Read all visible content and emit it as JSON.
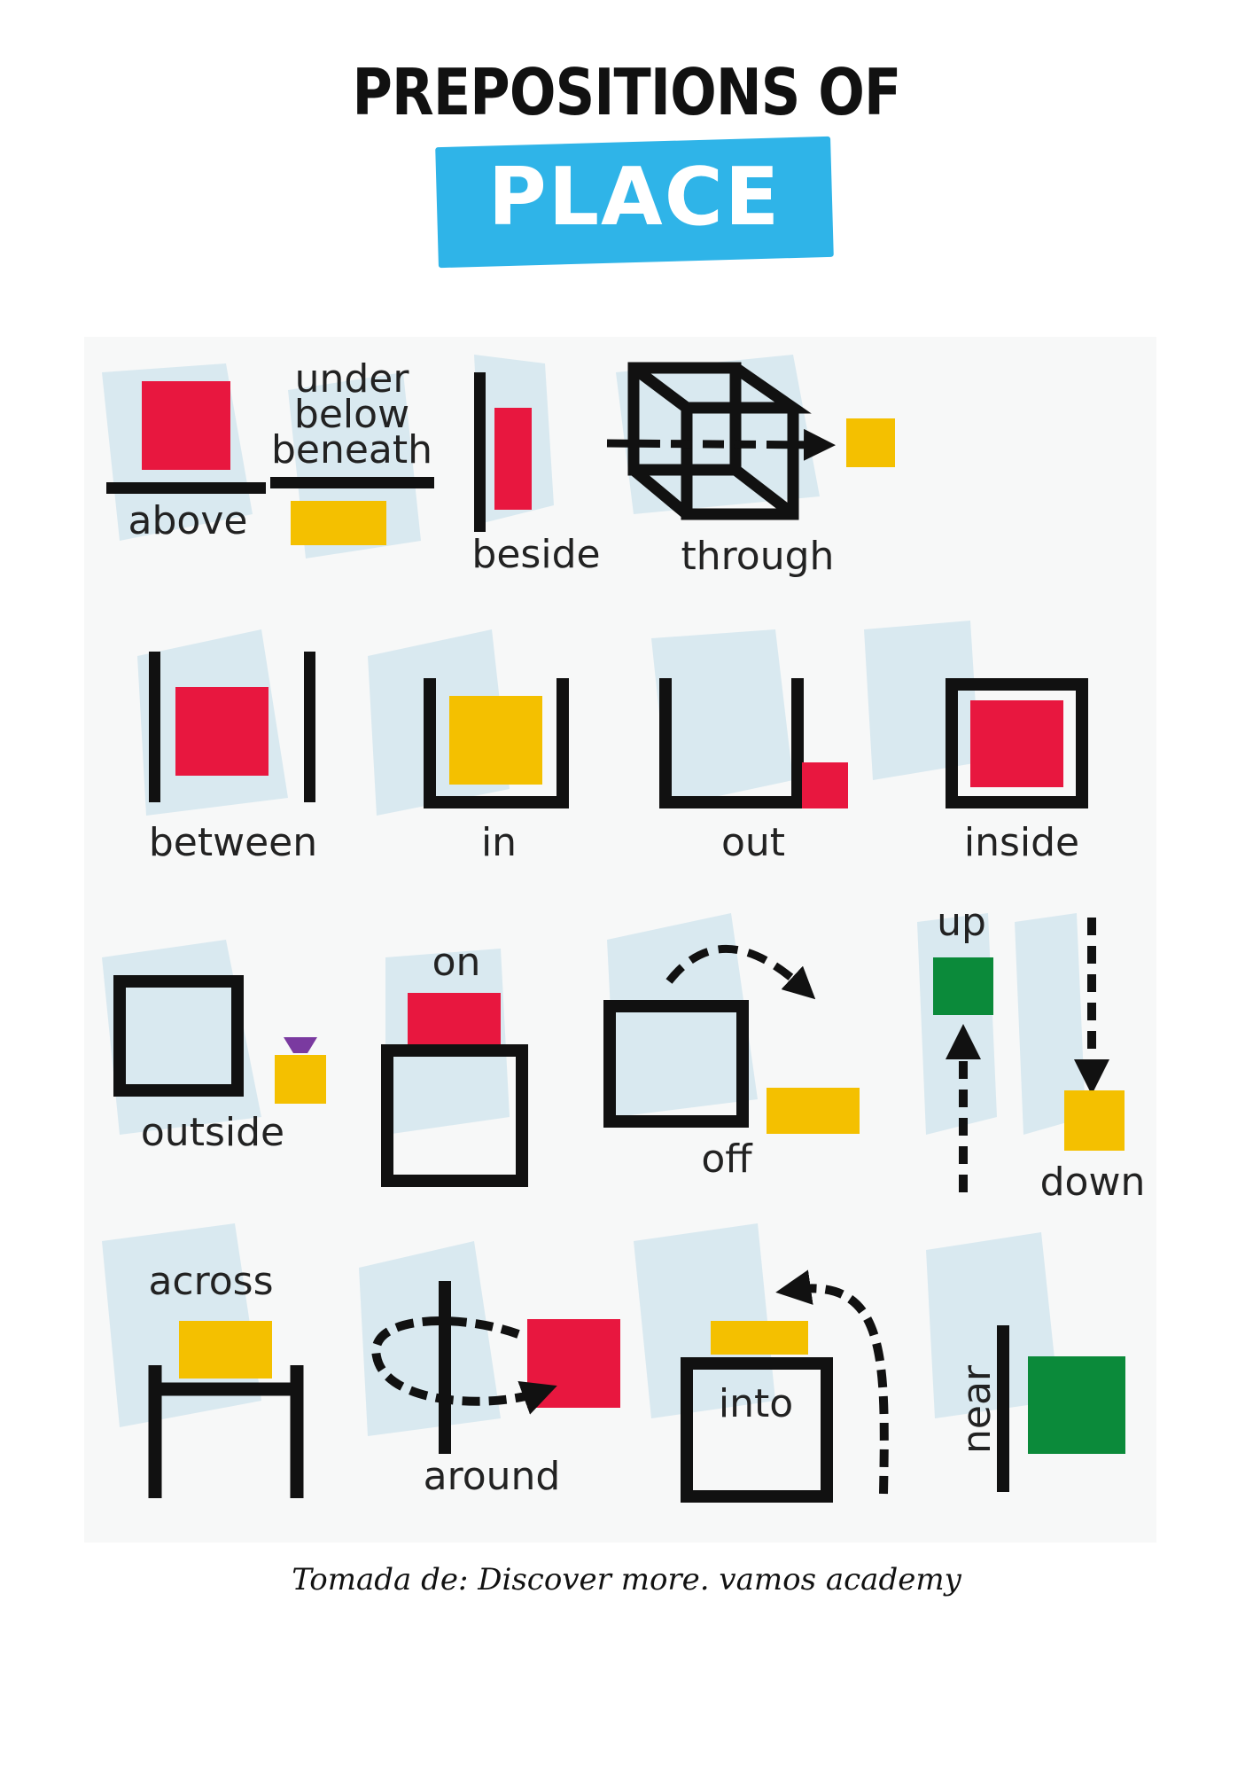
{
  "header": {
    "title": "PREPOSITIONS OF",
    "badge": "PLACE"
  },
  "colors": {
    "red": "#e8173f",
    "yellow": "#f4c000",
    "green": "#0b8a3a",
    "black": "#111111",
    "badge_blue": "#2fb4e8",
    "purple": "#7a3aa0",
    "brush": "#cfe4ee"
  },
  "prepositions": {
    "above": "above",
    "under": "under",
    "below": "below",
    "beneath": "beneath",
    "beside": "beside",
    "through": "through",
    "between": "between",
    "in": "in",
    "out": "out",
    "inside": "inside",
    "outside": "outside",
    "on": "on",
    "off": "off",
    "up": "up",
    "down": "down",
    "across": "across",
    "around": "around",
    "into": "into",
    "near": "near"
  },
  "footer": {
    "credit": "Tomada de: Discover more. vamos academy"
  }
}
